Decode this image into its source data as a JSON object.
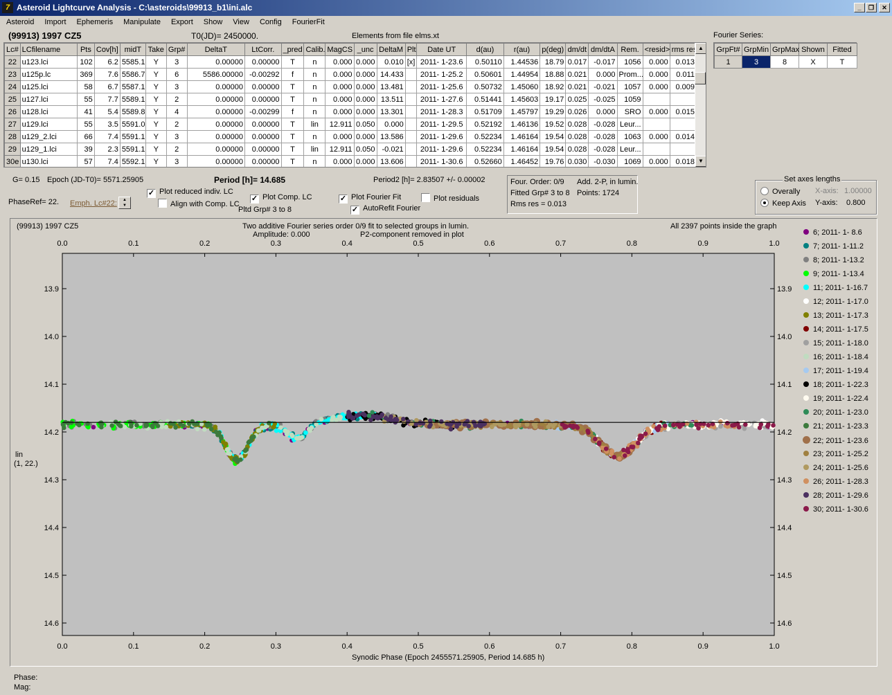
{
  "window": {
    "title": "Asteroid Lightcurve Analysis - C:\\asteroids\\99913_b1\\ini.alc",
    "icon_label": "7"
  },
  "menu": [
    "Asteroid",
    "Import",
    "Ephemeris",
    "Manipulate",
    "Export",
    "Show",
    "View",
    "Config",
    "FourierFit"
  ],
  "header": {
    "object": "(99913) 1997 CZ5",
    "t0": "T0(JD)= 2450000.",
    "elements": "Elements from file elms.xt",
    "fourier_series_label": "Fourier Series:"
  },
  "lc_table": {
    "columns": [
      "Lc#",
      "LCfilename",
      "Pts",
      "Cov[h]",
      "midT",
      "Take",
      "Grp#",
      "DeltaT",
      "LtCorr.",
      "_pred",
      "Calib.",
      "MagCS",
      "_unc",
      "DeltaM",
      "Plt",
      "Date UT",
      "d(au)",
      "r(au)",
      "p(deg)",
      "dm/dt",
      "dm/dtA",
      "Rem.",
      "<resid>",
      "rms res"
    ],
    "rows": [
      [
        "22",
        "u123.lci",
        "102",
        "6.2",
        "5585.1",
        "Y",
        "3",
        "0.00000",
        "0.00000",
        "T",
        "n",
        "0.000",
        "0.000",
        "0.010",
        "[x]",
        "2011- 1-23.6",
        "0.50110",
        "1.44536",
        "18.79",
        "0.017",
        "-0.017",
        "1056",
        "0.000",
        "0.013"
      ],
      [
        "23",
        "u125p.lc",
        "369",
        "7.6",
        "5586.7",
        "Y",
        "6",
        "5586.00000",
        "-0.00292",
        "f",
        "n",
        "0.000",
        "0.000",
        "14.433",
        "",
        "2011- 1-25.2",
        "0.50601",
        "1.44954",
        "18.88",
        "0.021",
        "0.000",
        "Prom...",
        "0.000",
        "0.011"
      ],
      [
        "24",
        "u125.lci",
        "58",
        "6.7",
        "5587.1",
        "Y",
        "3",
        "0.00000",
        "0.00000",
        "T",
        "n",
        "0.000",
        "0.000",
        "13.481",
        "",
        "2011- 1-25.6",
        "0.50732",
        "1.45060",
        "18.92",
        "0.021",
        "-0.021",
        "1057",
        "0.000",
        "0.009"
      ],
      [
        "25",
        "u127.lci",
        "55",
        "7.7",
        "5589.1",
        "Y",
        "2",
        "0.00000",
        "0.00000",
        "T",
        "n",
        "0.000",
        "0.000",
        "13.511",
        "",
        "2011- 1-27.6",
        "0.51441",
        "1.45603",
        "19.17",
        "0.025",
        "-0.025",
        "1059",
        "",
        ""
      ],
      [
        "26",
        "u128.lci",
        "41",
        "5.4",
        "5589.8",
        "Y",
        "4",
        "0.00000",
        "-0.00299",
        "f",
        "n",
        "0.000",
        "0.000",
        "13.301",
        "",
        "2011- 1-28.3",
        "0.51709",
        "1.45797",
        "19.29",
        "0.026",
        "0.000",
        "SRO",
        "0.000",
        "0.015"
      ],
      [
        "27",
        "u129.lci",
        "55",
        "3.5",
        "5591.0",
        "Y",
        "2",
        "0.00000",
        "0.00000",
        "T",
        "lin",
        "12.911",
        "0.050",
        "0.000",
        "",
        "2011- 1-29.5",
        "0.52192",
        "1.46136",
        "19.52",
        "0.028",
        "-0.028",
        "Leur...",
        "",
        ""
      ],
      [
        "28",
        "u129_2.lci",
        "66",
        "7.4",
        "5591.1",
        "Y",
        "3",
        "0.00000",
        "0.00000",
        "T",
        "n",
        "0.000",
        "0.000",
        "13.586",
        "",
        "2011- 1-29.6",
        "0.52234",
        "1.46164",
        "19.54",
        "0.028",
        "-0.028",
        "1063",
        "0.000",
        "0.014"
      ],
      [
        "29",
        "u129_1.lci",
        "39",
        "2.3",
        "5591.1",
        "Y",
        "2",
        "0.00000",
        "0.00000",
        "T",
        "lin",
        "12.911",
        "0.050",
        "-0.021",
        "",
        "2011- 1-29.6",
        "0.52234",
        "1.46164",
        "19.54",
        "0.028",
        "-0.028",
        "Leur...",
        "",
        ""
      ],
      [
        "30e",
        "u130.lci",
        "57",
        "7.4",
        "5592.1",
        "Y",
        "3",
        "0.00000",
        "0.00000",
        "T",
        "n",
        "0.000",
        "0.000",
        "13.606",
        "",
        "2011- 1-30.6",
        "0.52660",
        "1.46452",
        "19.76",
        "0.030",
        "-0.030",
        "1069",
        "0.000",
        "0.018"
      ]
    ]
  },
  "fourier_table": {
    "columns": [
      "GrpFt#",
      "GrpMin",
      "GrpMax",
      "Shown",
      "Fitted"
    ],
    "rows": [
      [
        "1",
        "3",
        "8",
        "X",
        "T"
      ]
    ]
  },
  "controls": {
    "g_value": "G= 0.15",
    "epoch": "Epoch (JD-T0)= 5571.25905",
    "period": "Period [h]= 14.685",
    "period2": "Period2 [h]= 2.83507 +/- 0.00002",
    "phase_ref": "PhaseRef= 22.",
    "emph_lc": "Emph. Lc#22:",
    "plot_reduced": "Plot reduced indiv. LC",
    "align_comp": "Align with Comp. LC",
    "plot_comp": "Plot Comp. LC",
    "pltd_grp": "Pltd Grp#  3   to   8",
    "plot_fourier": "Plot Fourier Fit",
    "autorefit": "AutoRefit Fourier",
    "plot_residuals": "Plot residuals",
    "check_plot_reduced": "✓",
    "check_align_comp": "",
    "check_plot_comp": "✓",
    "check_plot_fourier": "✓",
    "check_autorefit": "✓",
    "check_plot_residuals": ""
  },
  "fit_info": {
    "four_order": "Four. Order:  0/9",
    "add": "Add. 2-P, in lumin.",
    "fitted_grp": "Fitted Grp# 3 to 8",
    "points": "Points: 1724",
    "rms": "Rms res     = 0.013"
  },
  "axes_box": {
    "title": "Set axes lengths",
    "overally": "Overally",
    "keep_axis": "Keep Axis",
    "x_axis_label": "X-axis:",
    "x_axis_value": "1.00000",
    "y_axis_label": "Y-axis:",
    "y_axis_value": "0.800"
  },
  "plot": {
    "object": "(99913) 1997 CZ5",
    "title_line1": "Two additive Fourier series order 0/9 fit to selected groups in lumin.",
    "title_line2": "Amplitude: 0.000",
    "title_line3": "P2-component removed in plot",
    "points_info": "All 2397 points inside the graph",
    "ylabel_1": "lin",
    "ylabel_2": "(1, 22.)",
    "xlabel": "Synodic Phase (Epoch 2455571.25905, Period 14.685 h)",
    "phase_label": "Phase:",
    "mag_label": "Mag:"
  },
  "chart_data": {
    "type": "scatter",
    "xlim": [
      0.0,
      1.0
    ],
    "ylim": [
      14.6,
      13.9
    ],
    "x_ticks": [
      "0.0",
      "0.1",
      "0.2",
      "0.3",
      "0.4",
      "0.5",
      "0.6",
      "0.7",
      "0.8",
      "0.9",
      "1.0"
    ],
    "y_ticks": [
      "13.9",
      "14.0",
      "14.1",
      "14.2",
      "14.3",
      "14.4",
      "14.5",
      "14.6"
    ],
    "fit_line_y": 14.18,
    "series": [
      {
        "name": "6; 2011- 1- 8.6",
        "color": "#800080",
        "big": false
      },
      {
        "name": "7; 2011- 1-11.2",
        "color": "#008080",
        "big": false
      },
      {
        "name": "8; 2011- 1-13.2",
        "color": "#808080",
        "big": false
      },
      {
        "name": "9; 2011- 1-13.4",
        "color": "#00ff00",
        "big": false
      },
      {
        "name": "11; 2011- 1-16.7",
        "color": "#00ffff",
        "big": false
      },
      {
        "name": "12; 2011- 1-17.0",
        "color": "#ffffff",
        "big": false
      },
      {
        "name": "13; 2011- 1-17.3",
        "color": "#808000",
        "big": false
      },
      {
        "name": "14; 2011- 1-17.5",
        "color": "#800000",
        "big": false
      },
      {
        "name": "15; 2011- 1-18.0",
        "color": "#a0a0a0",
        "big": false
      },
      {
        "name": "16; 2011- 1-18.4",
        "color": "#c0dcc0",
        "big": false
      },
      {
        "name": "17; 2011- 1-19.4",
        "color": "#a6caf0",
        "big": false
      },
      {
        "name": "18; 2011- 1-22.3",
        "color": "#000000",
        "big": false
      },
      {
        "name": "19; 2011- 1-22.4",
        "color": "#fffbf0",
        "big": false
      },
      {
        "name": "20; 2011- 1-23.0",
        "color": "#2e8b57",
        "big": false
      },
      {
        "name": "21; 2011- 1-23.3",
        "color": "#3c7a3c",
        "big": false
      },
      {
        "name": "22; 2011- 1-23.6",
        "color": "#a0704a",
        "big": true
      },
      {
        "name": "23; 2011- 1-25.2",
        "color": "#a08040",
        "big": false
      },
      {
        "name": "24; 2011- 1-25.6",
        "color": "#b09a60",
        "big": false
      },
      {
        "name": "26; 2011- 1-28.3",
        "color": "#d09060",
        "big": false
      },
      {
        "name": "28; 2011- 1-29.6",
        "color": "#4b3060",
        "big": false
      },
      {
        "name": "30; 2011- 1-30.6",
        "color": "#8b1a4a",
        "big": false
      }
    ]
  }
}
